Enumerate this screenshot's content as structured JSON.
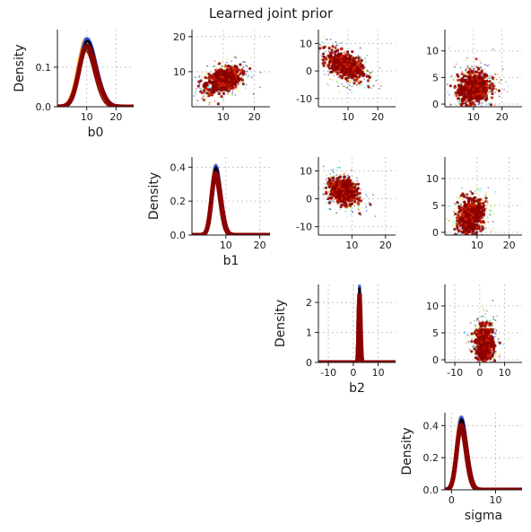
{
  "chart_data": {
    "type": "pairplot",
    "title": "Learned joint prior",
    "variables": [
      "b0",
      "b1",
      "b2",
      "sigma"
    ],
    "diag_ylabel": "Density",
    "grid": true,
    "series_colors": [
      "#8b0000",
      "#cc2200",
      "#ff7f00",
      "#ffd000",
      "#7fff00",
      "#00c060",
      "#00e0ff",
      "#3050ff",
      "#400080",
      "#000000"
    ],
    "panels": [
      {
        "id": "diag-b0",
        "row": 0,
        "col": 0,
        "kind": "density",
        "xlabel": "b0",
        "ylabel": "Density",
        "xlim": [
          0,
          26
        ],
        "ylim": [
          0,
          0.195
        ],
        "xticks": [
          10,
          20
        ],
        "yticks": [
          0.0,
          0.1
        ],
        "ytick_labels": [
          "0.0",
          "0.1"
        ],
        "mode": 10,
        "sd": 2.6,
        "peak": 0.16
      },
      {
        "id": "scatter-b0-b1",
        "row": 0,
        "col": 1,
        "kind": "scatter",
        "x_var": "b0",
        "y_var": "b1",
        "xlim": [
          0,
          25
        ],
        "ylim": [
          0,
          22
        ],
        "xticks": [
          10,
          20
        ],
        "yticks": [
          10,
          20
        ],
        "center": [
          10,
          7.5
        ],
        "spread": [
          3.2,
          2.0
        ],
        "corr": 0.4
      },
      {
        "id": "scatter-b0-b2",
        "row": 0,
        "col": 2,
        "kind": "scatter",
        "x_var": "b0",
        "y_var": "b2",
        "xlim": [
          0,
          26
        ],
        "ylim": [
          -13,
          15
        ],
        "xticks": [
          10,
          20
        ],
        "yticks": [
          -10,
          0,
          10
        ],
        "center": [
          9,
          2
        ],
        "spread": [
          3.3,
          2.8
        ],
        "corr": -0.5
      },
      {
        "id": "scatter-b0-sigma",
        "row": 0,
        "col": 3,
        "kind": "scatter",
        "x_var": "b0",
        "y_var": "sigma",
        "xlim": [
          0,
          27
        ],
        "ylim": [
          -0.5,
          14
        ],
        "xticks": [
          10,
          20
        ],
        "yticks": [
          0,
          5,
          10
        ],
        "center": [
          10,
          3
        ],
        "spread": [
          3.2,
          1.8
        ],
        "corr": 0.2
      },
      {
        "id": "diag-b1",
        "row": 1,
        "col": 1,
        "kind": "density",
        "xlabel": "b1",
        "ylabel": "Density",
        "xlim": [
          0,
          23
        ],
        "ylim": [
          0,
          0.46
        ],
        "xticks": [
          10,
          20
        ],
        "yticks": [
          0.0,
          0.2,
          0.4
        ],
        "ytick_labels": [
          "0.0",
          "0.2",
          "0.4"
        ],
        "mode": 7,
        "sd": 1.2,
        "peak": 0.38
      },
      {
        "id": "scatter-b1-b2",
        "row": 1,
        "col": 2,
        "kind": "scatter",
        "x_var": "b1",
        "y_var": "b2",
        "xlim": [
          0,
          23
        ],
        "ylim": [
          -13,
          15
        ],
        "xticks": [
          10,
          20
        ],
        "yticks": [
          -10,
          0,
          10
        ],
        "center": [
          7.5,
          2.5
        ],
        "spread": [
          2.2,
          2.5
        ],
        "corr": -0.3
      },
      {
        "id": "scatter-b1-sigma",
        "row": 1,
        "col": 3,
        "kind": "scatter",
        "x_var": "b1",
        "y_var": "sigma",
        "xlim": [
          0,
          24
        ],
        "ylim": [
          -0.5,
          14
        ],
        "xticks": [
          10,
          20
        ],
        "yticks": [
          0,
          5,
          10
        ],
        "center": [
          8,
          3
        ],
        "spread": [
          2.3,
          1.8
        ],
        "corr": 0.2
      },
      {
        "id": "diag-b2",
        "row": 2,
        "col": 2,
        "kind": "density",
        "xlabel": "b2",
        "ylabel": "Density",
        "xlim": [
          -14,
          17
        ],
        "ylim": [
          0,
          2.6
        ],
        "xticks": [
          -10,
          0,
          10
        ],
        "yticks": [
          0,
          1,
          2
        ],
        "ytick_labels": [
          "0",
          "1",
          "2"
        ],
        "mode": 2.5,
        "sd": 0.3,
        "peak": 2.4
      },
      {
        "id": "scatter-b2-sigma",
        "row": 2,
        "col": 3,
        "kind": "scatter",
        "x_var": "b2",
        "y_var": "sigma",
        "xlim": [
          -14,
          17
        ],
        "ylim": [
          -0.5,
          14
        ],
        "xticks": [
          -10,
          0,
          10
        ],
        "yticks": [
          0,
          5,
          10
        ],
        "center": [
          2,
          3
        ],
        "spread": [
          2.0,
          1.8
        ],
        "corr": 0.0
      },
      {
        "id": "diag-sigma",
        "row": 3,
        "col": 3,
        "kind": "density",
        "xlabel": "sigma",
        "ylabel": "Density",
        "xlim": [
          -1.5,
          16
        ],
        "ylim": [
          0,
          0.48
        ],
        "xticks": [
          0,
          10
        ],
        "yticks": [
          0.0,
          0.2,
          0.4
        ],
        "ytick_labels": [
          "0.0",
          "0.2",
          "0.4"
        ],
        "mode": 2.2,
        "sd": 1.0,
        "peak": 0.42
      }
    ]
  }
}
